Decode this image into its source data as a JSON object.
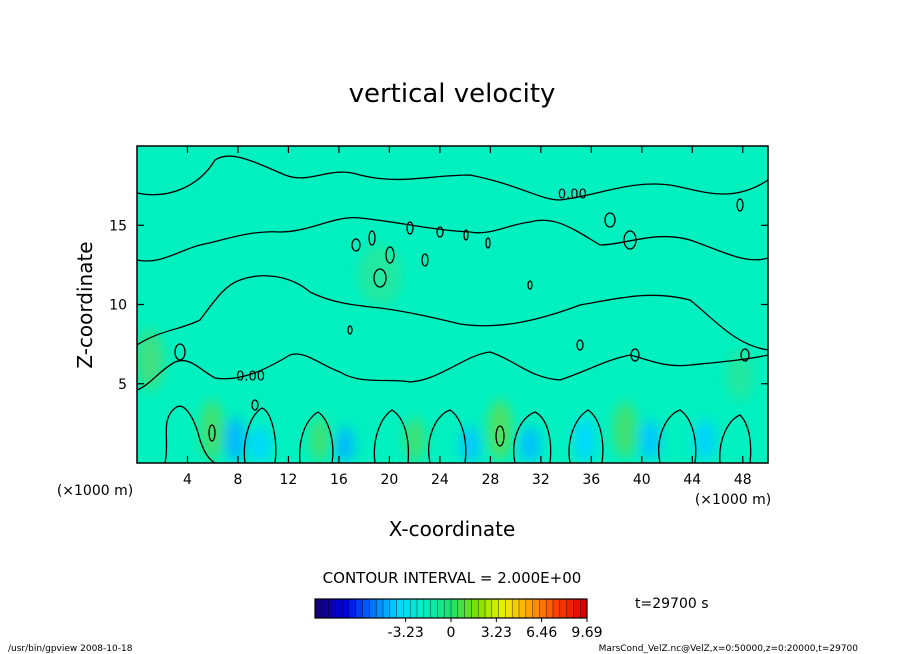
{
  "chart_data": {
    "type": "heatmap",
    "title": "vertical velocity",
    "xlabel": "X-coordinate",
    "ylabel": "Z-coordinate",
    "x_unit": "(×1000 m)",
    "y_unit": "(×1000 m)",
    "xlim": [
      0,
      50
    ],
    "ylim": [
      0,
      20
    ],
    "x_ticks": [
      4,
      8,
      12,
      16,
      20,
      24,
      28,
      32,
      36,
      40,
      44,
      48
    ],
    "y_ticks": [
      5,
      10,
      15
    ],
    "contour_interval": "CONTOUR INTERVAL = 2.000E+00",
    "contour_labels": [
      {
        "text": "0.00",
        "x": 34.5,
        "z": 16.7
      },
      {
        "text": "0.00",
        "x": 9.0,
        "z": 5.2
      }
    ],
    "time_label": "t=29700 s",
    "colorbar": {
      "ticks": [
        "-3.23",
        "0",
        "3.23",
        "6.46",
        "9.69"
      ],
      "range": [
        -9.69,
        9.69
      ],
      "colors": [
        "#140078",
        "#0000e0",
        "#0070ff",
        "#00d8ff",
        "#00f0c0",
        "#20e070",
        "#80e000",
        "#f0f000",
        "#ffa000",
        "#ff4000",
        "#e00000"
      ]
    },
    "field_background": "#00f0c0",
    "footer_left": "/usr/bin/gpview   2008-10-18",
    "footer_right": "MarsCond_VelZ.nc@VelZ,x=0:50000,z=0:20000,t=29700"
  }
}
